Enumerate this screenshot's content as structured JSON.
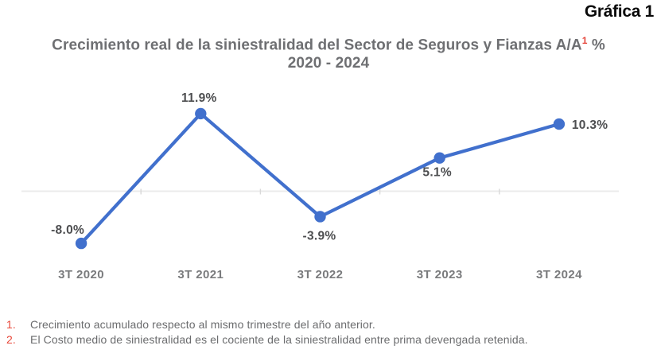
{
  "header": {
    "corner_label": "Gráfica 1"
  },
  "title": {
    "line1_main": "Crecimiento real de la siniestralidad del  Sector de Seguros y Fianzas A/A",
    "line1_superscript": "1",
    "line1_suffix": " %",
    "line2": "2020 - 2024"
  },
  "chart_data": {
    "type": "line",
    "categories": [
      "3T 2020",
      "3T 2021",
      "3T 2022",
      "3T 2023",
      "3T 2024"
    ],
    "values": [
      -8.0,
      11.9,
      -3.9,
      5.1,
      10.3
    ],
    "point_labels": [
      "-8.0%",
      "11.9%",
      "-3.9%",
      "5.1%",
      "10.3%"
    ],
    "series_name": "Crecimiento real de la siniestralidad A/A %",
    "title": "Crecimiento real de la siniestralidad del Sector de Seguros y Fianzas A/A % 2020 - 2024",
    "xlabel": "",
    "ylabel": "",
    "ylim": [
      -12,
      16
    ],
    "grid": "single zero baseline, no y-axis labels",
    "legend": "none",
    "colors": {
      "line": "#4170cd",
      "point": "#4170cd",
      "data_label": "#4d4e50",
      "axis_label": "#7a7b7d",
      "axis_line": "#ebebeb",
      "axis_tick": "#d9d9d9"
    }
  },
  "footnotes": {
    "items": [
      {
        "number": "1.",
        "text": "Crecimiento acumulado respecto al mismo trimestre del año anterior."
      },
      {
        "number": "2.",
        "text": "El Costo medio de siniestralidad es el cociente de la siniestralidad entre prima devengada retenida."
      }
    ]
  },
  "colors": {
    "accent_blue": "#4170cd",
    "accent_red": "#e8483a",
    "title_gray": "#6e6f72",
    "corner_black": "#0a0a0a"
  }
}
